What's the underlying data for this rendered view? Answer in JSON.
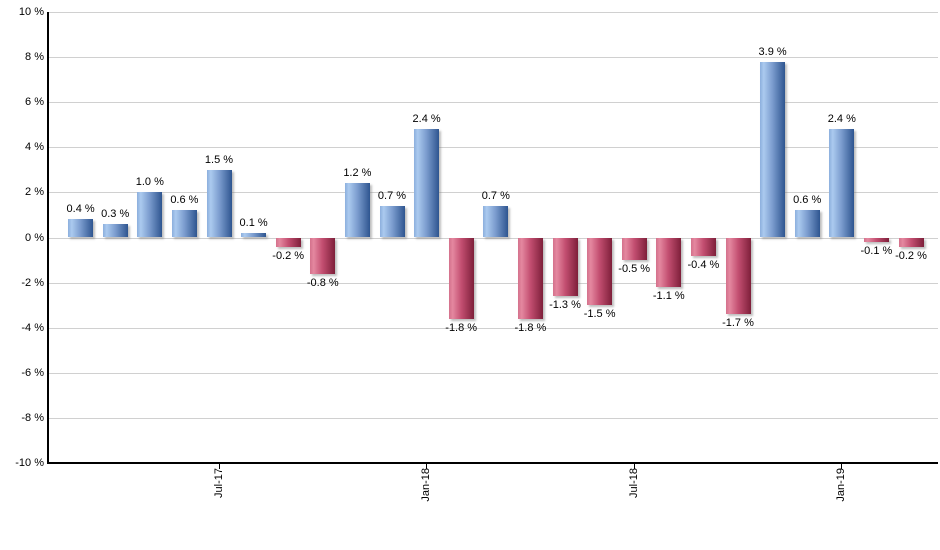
{
  "page": {
    "background": "#ffffff"
  },
  "chart_data": {
    "type": "bar",
    "title": "",
    "unit": "%",
    "values": [
      0.4,
      0.3,
      1.0,
      0.6,
      1.5,
      0.1,
      -0.2,
      -0.8,
      1.2,
      0.7,
      2.4,
      -1.8,
      0.7,
      -1.8,
      -1.3,
      -1.5,
      -0.5,
      -1.1,
      -0.4,
      -1.7,
      3.9,
      0.6,
      2.4,
      -0.1,
      -0.2
    ],
    "data_labels": [
      "0.4 %",
      "0.3 %",
      "1.0 %",
      "0.6 %",
      "1.5 %",
      "0.1 %",
      "-0.2 %",
      "-0.8 %",
      "1.2 %",
      "0.7 %",
      "2.4 %",
      "-1.8 %",
      "0.7 %",
      "-1.8 %",
      "-1.3 %",
      "-1.5 %",
      "-0.5 %",
      "-1.1 %",
      "-0.4 %",
      "-1.7 %",
      "3.9 %",
      "0.6 %",
      "2.4 %",
      "-0.1 %",
      "-0.2 %"
    ],
    "x_ticks": [
      {
        "bar_index": 4,
        "label": "Jul-17"
      },
      {
        "bar_index": 10,
        "label": "Jan-18"
      },
      {
        "bar_index": 16,
        "label": "Jul-18"
      },
      {
        "bar_index": 22,
        "label": "Jan-19"
      }
    ],
    "y_ticks": [
      {
        "value": 10,
        "label": "10 %"
      },
      {
        "value": 8,
        "label": "8 %"
      },
      {
        "value": 6,
        "label": "6 %"
      },
      {
        "value": 4,
        "label": "4 %"
      },
      {
        "value": 2,
        "label": "2 %"
      },
      {
        "value": 0,
        "label": "0 %"
      },
      {
        "value": -2,
        "label": "-2 %"
      },
      {
        "value": -4,
        "label": "-4 %"
      },
      {
        "value": -6,
        "label": "-6 %"
      },
      {
        "value": -8,
        "label": "-8 %"
      },
      {
        "value": -10,
        "label": "-10 %"
      }
    ],
    "ylim": [
      -10,
      10
    ],
    "grid": true,
    "legend": false,
    "colors": {
      "axis": "#000000",
      "gridline": "#d0d0d0",
      "label_text": "#000000",
      "positive_base": "#6d95c9",
      "negative_base": "#c85476",
      "positive_stops": [
        [
          0,
          "#8cafdd"
        ],
        [
          15,
          "#abcaef"
        ],
        [
          50,
          "#7b9cce"
        ],
        [
          100,
          "#2e5590"
        ]
      ],
      "negative_stops": [
        [
          0,
          "#d4718c"
        ],
        [
          15,
          "#e4879f"
        ],
        [
          50,
          "#c24e70"
        ],
        [
          100,
          "#7e1f3a"
        ]
      ]
    }
  }
}
